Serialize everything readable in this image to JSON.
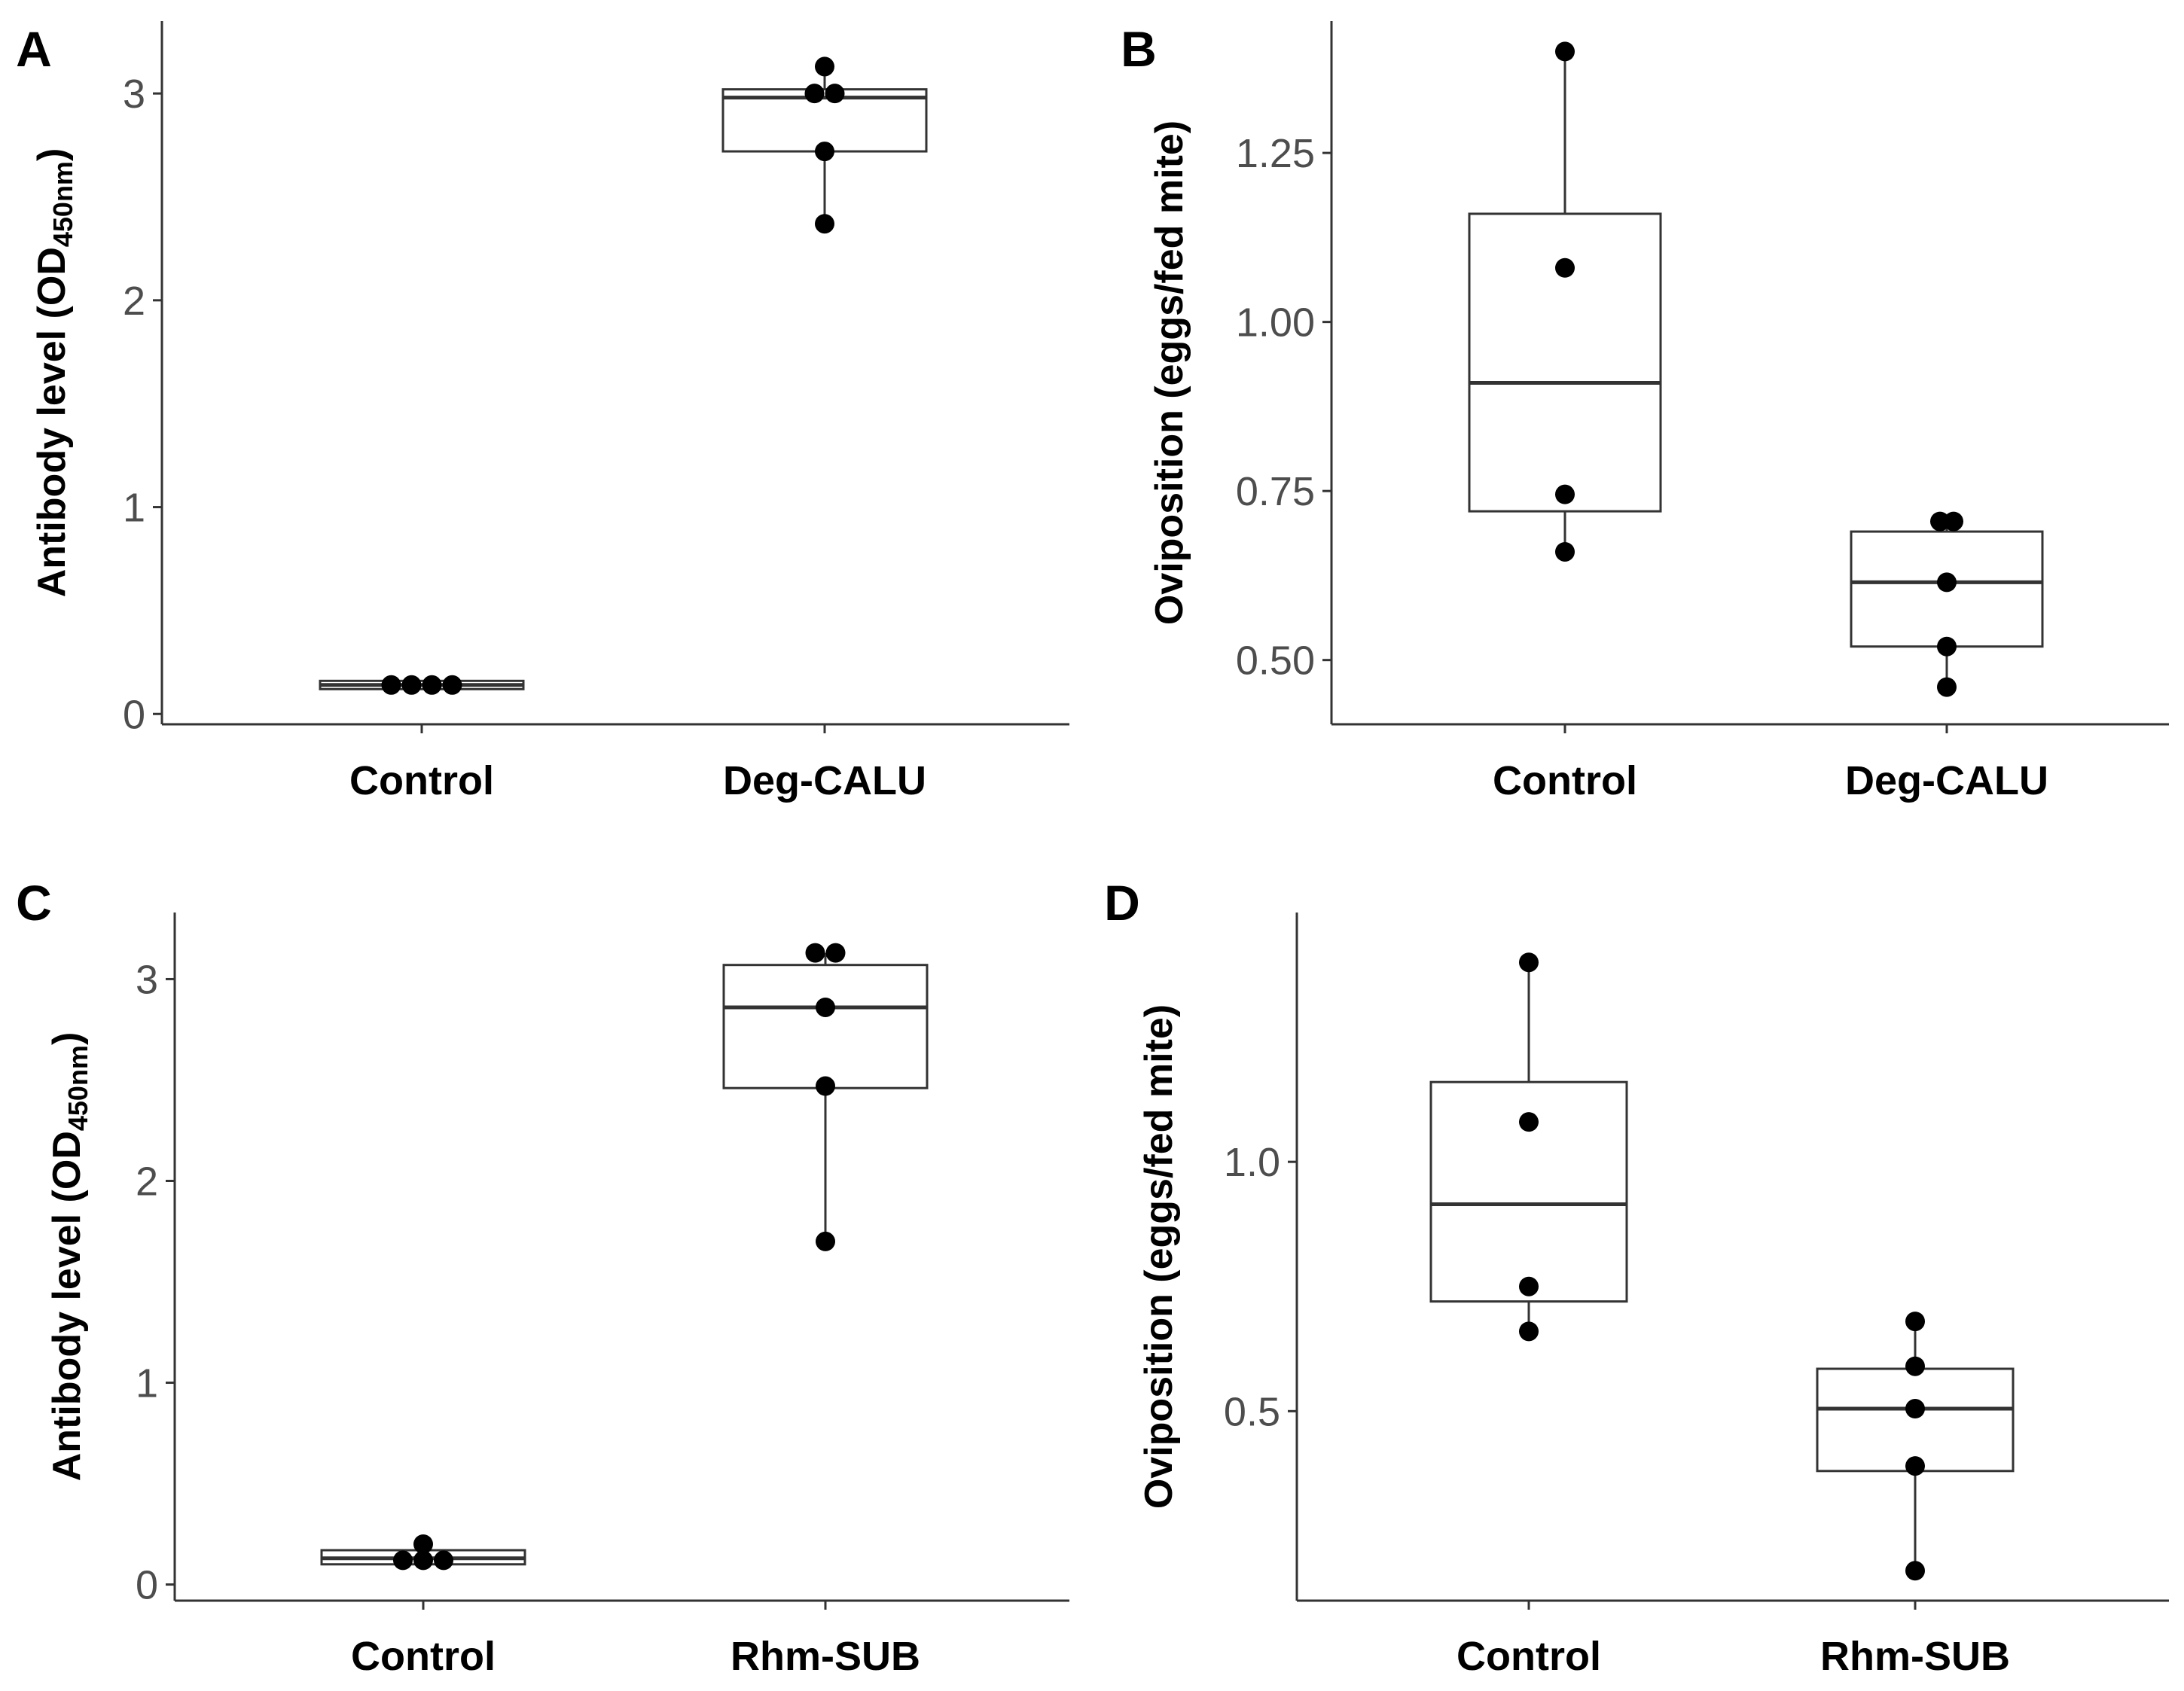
{
  "chart_data": [
    {
      "panel": "A",
      "type": "box",
      "ylabel_main": "Antibody level (OD",
      "ylabel_sub": "450nm",
      "ylabel_end": ")",
      "ylim": [
        -0.05,
        3.35
      ],
      "yticks": [
        0,
        1,
        2,
        3
      ],
      "ytick_labels": [
        "0",
        "1",
        "2",
        "3"
      ],
      "categories": [
        "Control",
        "Deg-CALU"
      ],
      "boxes": [
        {
          "q1": 0.12,
          "median": 0.14,
          "q3": 0.16,
          "whisker_low": 0.12,
          "whisker_high": 0.16,
          "points": [
            0.14,
            0.14,
            0.14,
            0.14
          ]
        },
        {
          "q1": 2.72,
          "median": 2.98,
          "q3": 3.02,
          "whisker_low": 2.37,
          "whisker_high": 3.13,
          "points": [
            2.37,
            2.72,
            3.0,
            3.0,
            3.13
          ]
        }
      ]
    },
    {
      "panel": "B",
      "type": "box",
      "ylabel_main": "Oviposition (eggs/fed mite)",
      "ylabel_sub": "",
      "ylabel_end": "",
      "ylim": [
        0.405,
        1.445
      ],
      "yticks": [
        0.5,
        0.75,
        1.0,
        1.25
      ],
      "ytick_labels": [
        "0.50",
        "0.75",
        "1.00",
        "1.25"
      ],
      "categories": [
        "Control",
        "Deg-CALU"
      ],
      "boxes": [
        {
          "q1": 0.72,
          "median": 0.91,
          "q3": 1.16,
          "whisker_low": 0.66,
          "whisker_high": 1.4,
          "points": [
            0.66,
            0.745,
            1.08,
            1.4
          ]
        },
        {
          "q1": 0.52,
          "median": 0.615,
          "q3": 0.69,
          "whisker_low": 0.46,
          "whisker_high": 0.705,
          "points": [
            0.46,
            0.52,
            0.615,
            0.705,
            0.705
          ]
        }
      ]
    },
    {
      "panel": "C",
      "type": "box",
      "ylabel_main": "Antibody level (OD",
      "ylabel_sub": "450nm",
      "ylabel_end": ")",
      "ylim": [
        -0.08,
        3.33
      ],
      "yticks": [
        0,
        1,
        2,
        3
      ],
      "ytick_labels": [
        "0",
        "1",
        "2",
        "3"
      ],
      "categories": [
        "Control",
        "Rhm-SUB"
      ],
      "boxes": [
        {
          "q1": 0.1,
          "median": 0.13,
          "q3": 0.17,
          "whisker_low": 0.1,
          "whisker_high": 0.2,
          "points": [
            0.12,
            0.12,
            0.12,
            0.2
          ]
        },
        {
          "q1": 2.46,
          "median": 2.86,
          "q3": 3.07,
          "whisker_low": 1.7,
          "whisker_high": 3.13,
          "points": [
            1.7,
            2.47,
            2.86,
            3.13,
            3.13
          ]
        }
      ]
    },
    {
      "panel": "D",
      "type": "box",
      "ylabel_main": "Oviposition (eggs/fed mite)",
      "ylabel_sub": "",
      "ylabel_end": "",
      "ylim": [
        0.12,
        1.5
      ],
      "yticks": [
        0.5,
        1.0
      ],
      "ytick_labels": [
        "0.5",
        "1.0"
      ],
      "categories": [
        "Control",
        "Rhm-SUB"
      ],
      "boxes": [
        {
          "q1": 0.72,
          "median": 0.915,
          "q3": 1.16,
          "whisker_low": 0.66,
          "whisker_high": 1.4,
          "points": [
            0.66,
            0.75,
            1.08,
            1.4
          ]
        },
        {
          "q1": 0.38,
          "median": 0.505,
          "q3": 0.585,
          "whisker_low": 0.18,
          "whisker_high": 0.68,
          "points": [
            0.18,
            0.39,
            0.505,
            0.59,
            0.68
          ]
        }
      ]
    }
  ]
}
